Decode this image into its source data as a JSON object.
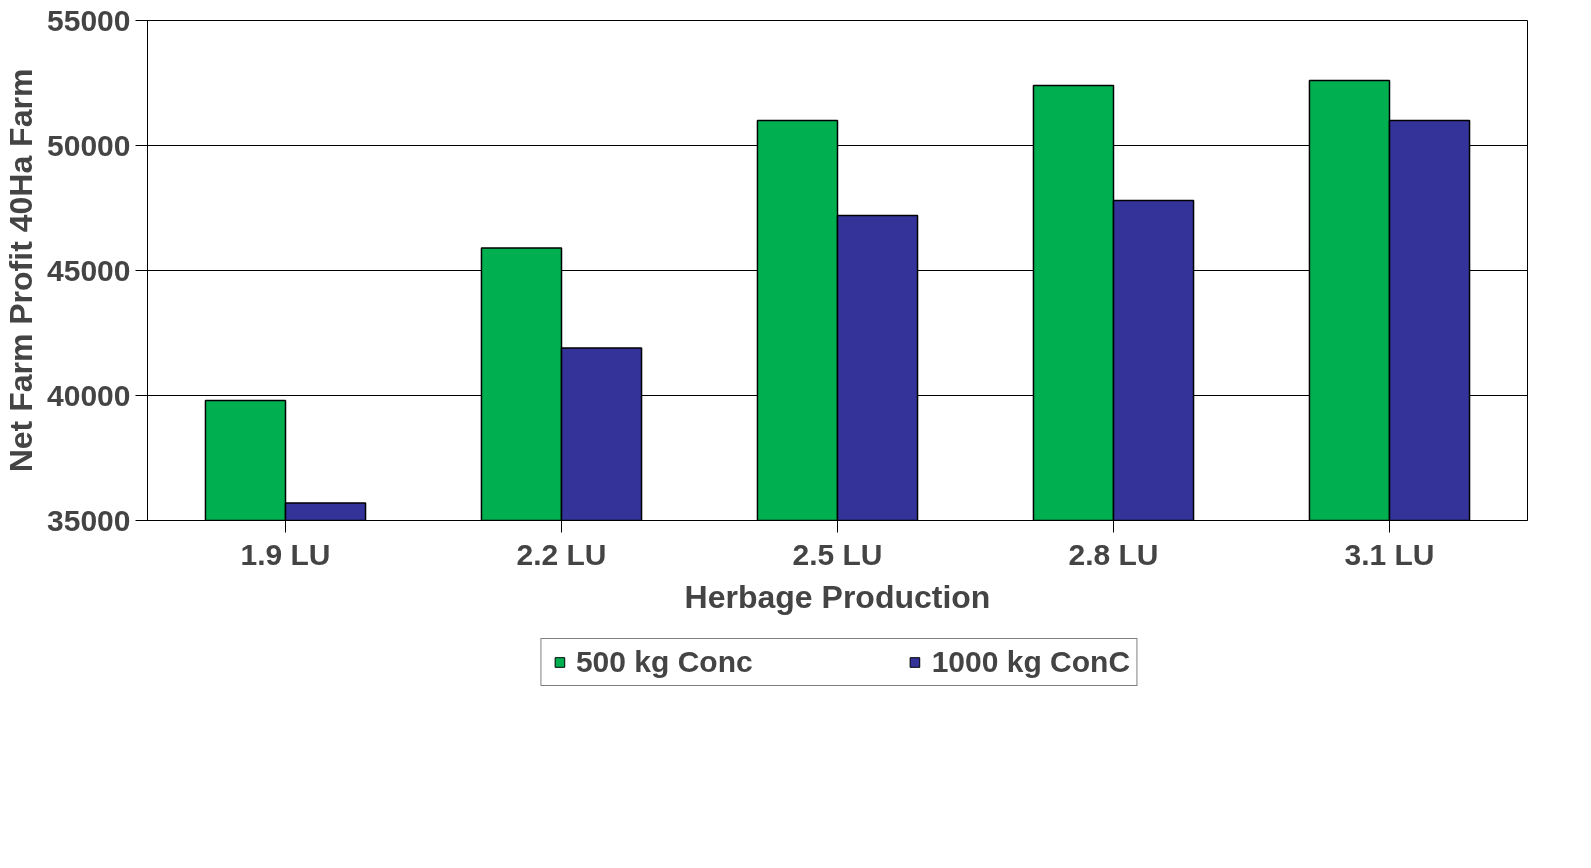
{
  "chart_data": {
    "type": "bar",
    "xlabel": "Herbage Production",
    "ylabel": "Net Farm Profit 40Ha Farm",
    "categories": [
      "1.9 LU",
      "2.2 LU",
      "2.5 LU",
      "2.8 LU",
      "3.1 LU"
    ],
    "series": [
      {
        "name": "500 kg Conc",
        "color": "#00b050",
        "values": [
          39800,
          45900,
          51000,
          52400,
          52600
        ]
      },
      {
        "name": "1000 kg ConC",
        "color": "#333399",
        "values": [
          35700,
          41900,
          47200,
          47800,
          51000
        ]
      }
    ],
    "ylim": [
      35000,
      55000
    ],
    "yticks": [
      35000,
      40000,
      45000,
      50000,
      55000
    ],
    "grid": "y",
    "legend": "bottom"
  }
}
